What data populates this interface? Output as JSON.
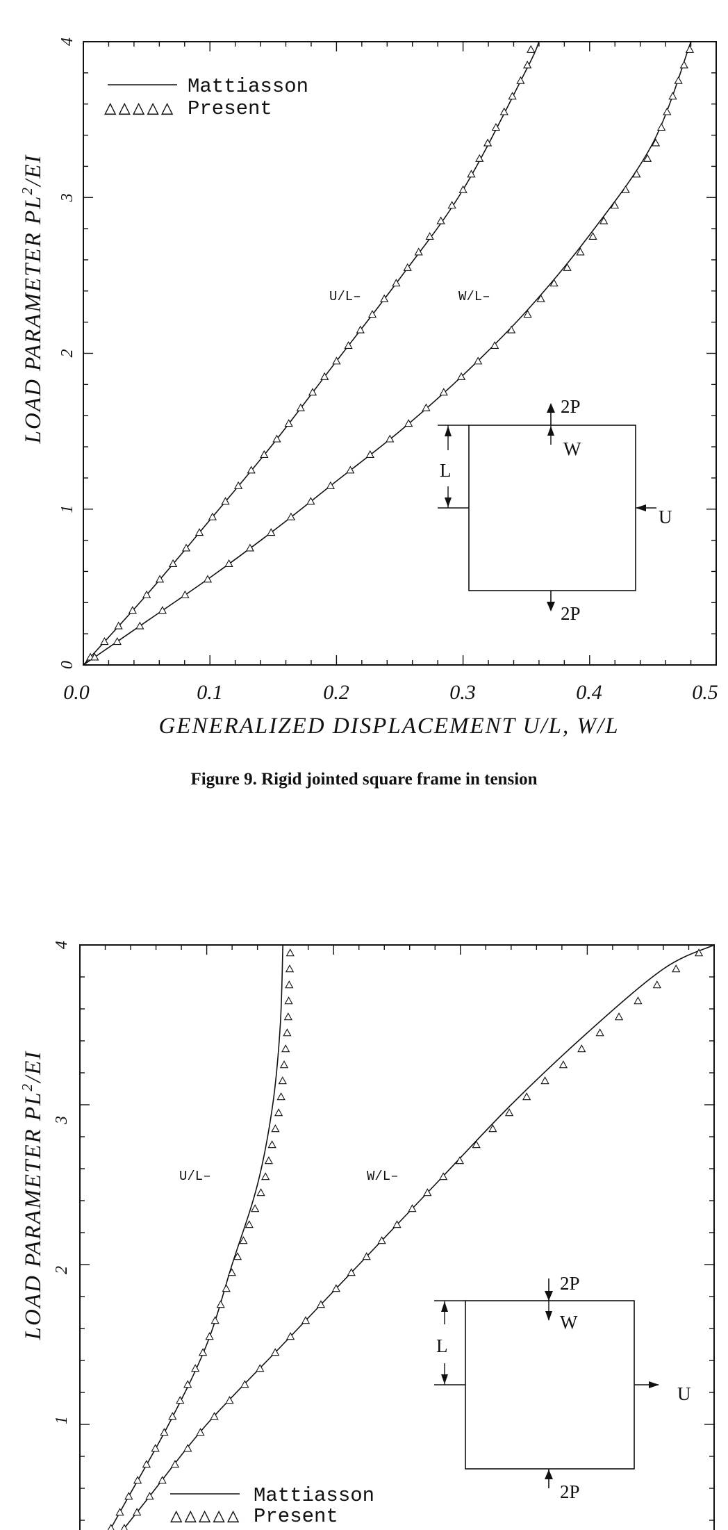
{
  "figure1": {
    "caption": "Figure 9.  Rigid jointed square frame in tension",
    "chart_data": {
      "type": "line",
      "ylabel": "LOAD PARAMETER  PL",
      "ylabel_sup": "2",
      "ylabel_tail": "/EI",
      "xlabel": "GENERALIZED  DISPLACEMENT  U/L,  W/L",
      "xlim": [
        0,
        0.5
      ],
      "ylim": [
        0,
        4
      ],
      "xticks": [
        "0.0",
        "0.1",
        "0.2",
        "0.3",
        "0.4",
        "0.5"
      ],
      "yticks": [
        "0",
        "1",
        "2",
        "3",
        "4"
      ],
      "legend": {
        "placement": "top-left",
        "line": "Mattiasson",
        "markers": "Present",
        "marker_glyphs": "△△△△△"
      },
      "curve_labels": {
        "u": "U/L–",
        "w": "W/L–"
      },
      "inset": {
        "top_load": "2P",
        "bottom_load": "2P",
        "w": "W",
        "l": "L",
        "u": "U"
      },
      "series": [
        {
          "name": "Mattiasson",
          "style": "line",
          "curve": "U/L",
          "points": [
            [
              0,
              0
            ],
            [
              0.05,
              0.45
            ],
            [
              0.1,
              0.93
            ],
            [
              0.15,
              1.42
            ],
            [
              0.2,
              1.95
            ],
            [
              0.25,
              2.48
            ],
            [
              0.3,
              3.05
            ],
            [
              0.35,
              3.82
            ],
            [
              0.36,
              4.0
            ]
          ]
        },
        {
          "name": "Mattiasson",
          "style": "line",
          "curve": "W/L",
          "points": [
            [
              0,
              0
            ],
            [
              0.05,
              0.28
            ],
            [
              0.1,
              0.56
            ],
            [
              0.15,
              0.86
            ],
            [
              0.2,
              1.18
            ],
            [
              0.25,
              1.5
            ],
            [
              0.3,
              1.86
            ],
            [
              0.35,
              2.27
            ],
            [
              0.4,
              2.76
            ],
            [
              0.45,
              3.35
            ],
            [
              0.48,
              4.0
            ]
          ]
        },
        {
          "name": "Present",
          "style": "markers",
          "curve": "U/L",
          "points": [
            [
              0,
              0
            ],
            [
              0.05,
              0.45
            ],
            [
              0.1,
              0.93
            ],
            [
              0.15,
              1.42
            ],
            [
              0.2,
              1.95
            ],
            [
              0.25,
              2.48
            ],
            [
              0.3,
              3.05
            ],
            [
              0.35,
              3.82
            ],
            [
              0.355,
              4.0
            ]
          ]
        },
        {
          "name": "Present",
          "style": "markers",
          "curve": "W/L",
          "points": [
            [
              0,
              0
            ],
            [
              0.05,
              0.28
            ],
            [
              0.1,
              0.56
            ],
            [
              0.15,
              0.86
            ],
            [
              0.2,
              1.18
            ],
            [
              0.25,
              1.5
            ],
            [
              0.3,
              1.86
            ],
            [
              0.35,
              2.24
            ],
            [
              0.4,
              2.72
            ],
            [
              0.45,
              3.3
            ],
            [
              0.48,
              3.97
            ]
          ]
        }
      ]
    }
  },
  "figure2": {
    "chart_data": {
      "type": "line",
      "ylabel": "LOAD PARAMETER  PL",
      "ylabel_sup": "2",
      "ylabel_tail": "/EI",
      "xlim": [
        0,
        0.5
      ],
      "ylim": [
        0,
        4
      ],
      "yticks": [
        "1",
        "2",
        "3",
        "4"
      ],
      "legend": {
        "placement": "bottom-left",
        "line": "Mattiasson",
        "markers": "Present",
        "marker_glyphs": "△△△△△"
      },
      "curve_labels": {
        "u": "U/L–",
        "w": "W/L–"
      },
      "inset": {
        "top_load": "2P",
        "bottom_load": "2P",
        "w": "W",
        "l": "L",
        "u": "U"
      },
      "series": [
        {
          "name": "Mattiasson",
          "style": "line",
          "curve": "U/L",
          "points": [
            [
              0,
              0
            ],
            [
              0.035,
              0.5
            ],
            [
              0.07,
              1.0
            ],
            [
              0.1,
              1.5
            ],
            [
              0.12,
              2.0
            ],
            [
              0.14,
              2.5
            ],
            [
              0.152,
              3.0
            ],
            [
              0.158,
              3.5
            ],
            [
              0.16,
              4.0
            ]
          ]
        },
        {
          "name": "Mattiasson",
          "style": "line",
          "curve": "W/L",
          "points": [
            [
              0,
              0
            ],
            [
              0.05,
              0.5
            ],
            [
              0.1,
              1.0
            ],
            [
              0.16,
              1.5
            ],
            [
              0.22,
              2.0
            ],
            [
              0.28,
              2.5
            ],
            [
              0.34,
              3.0
            ],
            [
              0.4,
              3.45
            ],
            [
              0.46,
              3.85
            ],
            [
              0.5,
              4.0
            ]
          ]
        },
        {
          "name": "Present",
          "style": "markers",
          "curve": "U/L",
          "points": [
            [
              0,
              0
            ],
            [
              0.035,
              0.5
            ],
            [
              0.07,
              1.0
            ],
            [
              0.1,
              1.5
            ],
            [
              0.122,
              2.0
            ],
            [
              0.145,
              2.5
            ],
            [
              0.158,
              3.0
            ],
            [
              0.164,
              3.5
            ],
            [
              0.166,
              4.0
            ]
          ]
        },
        {
          "name": "Present",
          "style": "markers",
          "curve": "W/L",
          "points": [
            [
              0,
              0
            ],
            [
              0.05,
              0.5
            ],
            [
              0.1,
              1.0
            ],
            [
              0.16,
              1.5
            ],
            [
              0.22,
              2.0
            ],
            [
              0.28,
              2.5
            ],
            [
              0.345,
              3.0
            ],
            [
              0.41,
              3.45
            ],
            [
              0.47,
              3.85
            ],
            [
              0.497,
              4.0
            ]
          ]
        }
      ]
    }
  }
}
